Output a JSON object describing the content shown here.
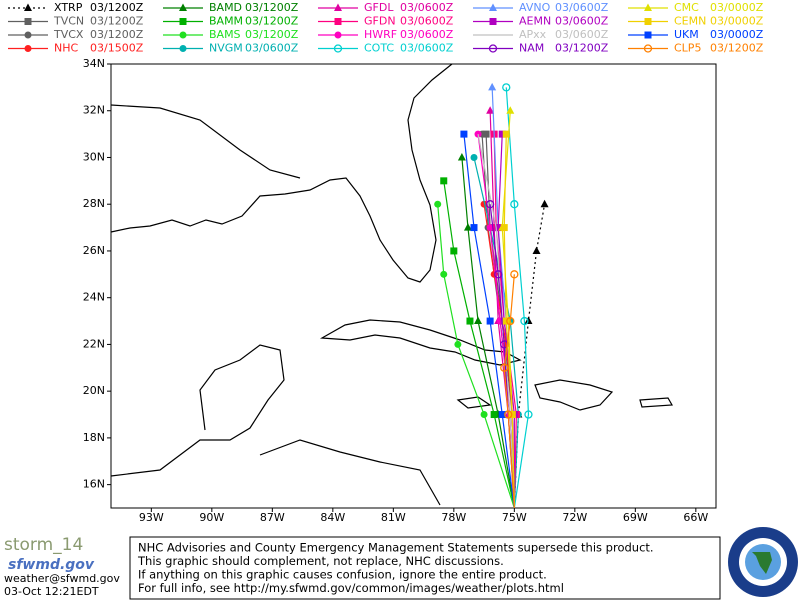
{
  "map": {
    "xlim": [
      -95,
      -65
    ],
    "ylim": [
      15,
      34
    ],
    "xticks": [
      {
        "value": -93,
        "label": "93W"
      },
      {
        "value": -90,
        "label": "90W"
      },
      {
        "value": -87,
        "label": "87W"
      },
      {
        "value": -84,
        "label": "84W"
      },
      {
        "value": -81,
        "label": "81W"
      },
      {
        "value": -78,
        "label": "78W"
      },
      {
        "value": -75,
        "label": "75W"
      },
      {
        "value": -72,
        "label": "72W"
      },
      {
        "value": -69,
        "label": "69W"
      },
      {
        "value": -66,
        "label": "66W"
      }
    ],
    "yticks": [
      {
        "value": 16,
        "label": "16N"
      },
      {
        "value": 18,
        "label": "18N"
      },
      {
        "value": 20,
        "label": "20N"
      },
      {
        "value": 22,
        "label": "22N"
      },
      {
        "value": 24,
        "label": "24N"
      },
      {
        "value": 26,
        "label": "26N"
      },
      {
        "value": 28,
        "label": "28N"
      },
      {
        "value": 30,
        "label": "30N"
      },
      {
        "value": 32,
        "label": "32N"
      },
      {
        "value": 34,
        "label": "34N"
      }
    ],
    "models": [
      {
        "name": "XTRP",
        "run": "03/1200Z",
        "color": "#000000",
        "marker": "triangle",
        "dashed": true,
        "lon": [
          -75,
          -74.8,
          -74.3,
          -73.9,
          -73.5
        ],
        "lat": [
          15,
          19,
          23,
          26,
          28
        ]
      },
      {
        "name": "TVCN",
        "run": "03/1200Z",
        "color": "#606060",
        "marker": "square",
        "lon": [
          -75,
          -75.1,
          -75.6,
          -76.2,
          -76.4
        ],
        "lat": [
          15,
          19,
          23,
          27,
          31
        ]
      },
      {
        "name": "TVCX",
        "run": "03/1200Z",
        "color": "#606060",
        "marker": "circle",
        "lon": [
          -75,
          -75.2,
          -75.7,
          -76.3,
          -76.6
        ],
        "lat": [
          15,
          19,
          23,
          27,
          31
        ]
      },
      {
        "name": "NHC",
        "run": "03/1500Z",
        "color": "#ff2020",
        "marker": "circle",
        "lon": [
          -75,
          -75.1,
          -75.4,
          -76.0,
          -76.5
        ],
        "lat": [
          15,
          19,
          22,
          25,
          28
        ]
      },
      {
        "name": "BAMD",
        "run": "03/1200Z",
        "color": "#008000",
        "marker": "triangle",
        "lon": [
          -75,
          -75.8,
          -76.8,
          -77.3,
          -77.6
        ],
        "lat": [
          15,
          19,
          23,
          27,
          30
        ]
      },
      {
        "name": "BAMM",
        "run": "03/1200Z",
        "color": "#00b000",
        "marker": "square",
        "lon": [
          -75,
          -76,
          -77.2,
          -78,
          -78.5
        ],
        "lat": [
          15,
          19,
          23,
          26,
          29
        ]
      },
      {
        "name": "BAMS",
        "run": "03/1200Z",
        "color": "#20e020",
        "marker": "circle",
        "lon": [
          -75,
          -76.5,
          -77.8,
          -78.5,
          -78.8
        ],
        "lat": [
          15,
          19,
          22,
          25,
          28
        ]
      },
      {
        "name": "NVGM",
        "run": "03/0600Z",
        "color": "#00b0b0",
        "marker": "circle",
        "lon": [
          -75,
          -74.8,
          -75.2,
          -76.2,
          -77
        ],
        "lat": [
          15,
          19,
          23,
          27,
          30
        ]
      },
      {
        "name": "GFDL",
        "run": "03/0600Z",
        "color": "#e000a0",
        "marker": "triangle",
        "lon": [
          -75,
          -75.3,
          -75.8,
          -76.0,
          -76.2
        ],
        "lat": [
          15,
          19,
          23,
          27,
          32
        ]
      },
      {
        "name": "GFDN",
        "run": "03/0600Z",
        "color": "#ff0080",
        "marker": "square",
        "lon": [
          -75,
          -74.9,
          -75.5,
          -75.9,
          -76
        ],
        "lat": [
          15,
          19,
          23,
          27,
          31
        ]
      },
      {
        "name": "HWRF",
        "run": "03/0600Z",
        "color": "#ff00c0",
        "marker": "circle",
        "lon": [
          -75,
          -75.2,
          -75.7,
          -76.2,
          -76.8
        ],
        "lat": [
          15,
          19,
          23,
          27,
          31
        ]
      },
      {
        "name": "COTC",
        "run": "03/0600Z",
        "color": "#00d0d0",
        "marker": "ring",
        "lon": [
          -75,
          -74.3,
          -74.5,
          -75,
          -75.4
        ],
        "lat": [
          15,
          19,
          23,
          28,
          33
        ]
      },
      {
        "name": "AVNO",
        "run": "03/0600Z",
        "color": "#6090ff",
        "marker": "triangle",
        "lon": [
          -75,
          -75.1,
          -75.4,
          -75.8,
          -76.1
        ],
        "lat": [
          15,
          19,
          23,
          27,
          33
        ]
      },
      {
        "name": "AEMN",
        "run": "03/0600Z",
        "color": "#b000c0",
        "marker": "square",
        "lon": [
          -75,
          -75,
          -75.5,
          -75.8,
          -75.6
        ],
        "lat": [
          15,
          19,
          23,
          27,
          31
        ]
      },
      {
        "name": "APxx",
        "run": "03/0600Z",
        "color": "#c0c0c0",
        "marker": "none",
        "lon": [
          -75,
          -75.2,
          -75.6,
          -75.9,
          -76.8
        ],
        "lat": [
          15,
          19,
          23,
          27,
          31
        ]
      },
      {
        "name": "NAM",
        "run": "03/1200Z",
        "color": "#8000c0",
        "marker": "ring",
        "lon": [
          -75,
          -75.3,
          -75.5,
          -75.8,
          -76.2
        ],
        "lat": [
          15,
          19,
          22,
          25,
          28
        ]
      },
      {
        "name": "CMC",
        "run": "03/0000Z",
        "color": "#e0e000",
        "marker": "triangle",
        "lon": [
          -75,
          -75.1,
          -75.3,
          -75.6,
          -75.2
        ],
        "lat": [
          15,
          19,
          23,
          27,
          32
        ]
      },
      {
        "name": "CEMN",
        "run": "03/0000Z",
        "color": "#f0d000",
        "marker": "square",
        "lon": [
          -75,
          -75.1,
          -75.4,
          -75.5,
          -75.4
        ],
        "lat": [
          15,
          19,
          23,
          27,
          31
        ]
      },
      {
        "name": "UKM",
        "run": "03/0000Z",
        "color": "#0040ff",
        "marker": "square",
        "lon": [
          -75,
          -75.6,
          -76.2,
          -77,
          -77.5
        ],
        "lat": [
          15,
          19,
          23,
          27,
          31
        ]
      },
      {
        "name": "CLP5",
        "run": "03/1200Z",
        "color": "#ff8000",
        "marker": "ring",
        "lon": [
          -75,
          -75.3,
          -75.5,
          -75.2,
          -75
        ],
        "lat": [
          15,
          19,
          21,
          23,
          25
        ]
      }
    ]
  },
  "footer": {
    "storm": "storm_14",
    "logo": "sfwmd.gov",
    "email": "weather@sfwmd.gov",
    "timestamp": "03-Oct 12:21EDT",
    "disclaimer": [
      "NHC Advisories and County Emergency Management Statements supersede this product.",
      "This graphic should complement, not replace, NHC discussions.",
      "If anything on this graphic causes confusion, ignore the entire product.",
      "For full info, see  http://my.sfwmd.gov/common/images/weather/plots.html"
    ]
  }
}
